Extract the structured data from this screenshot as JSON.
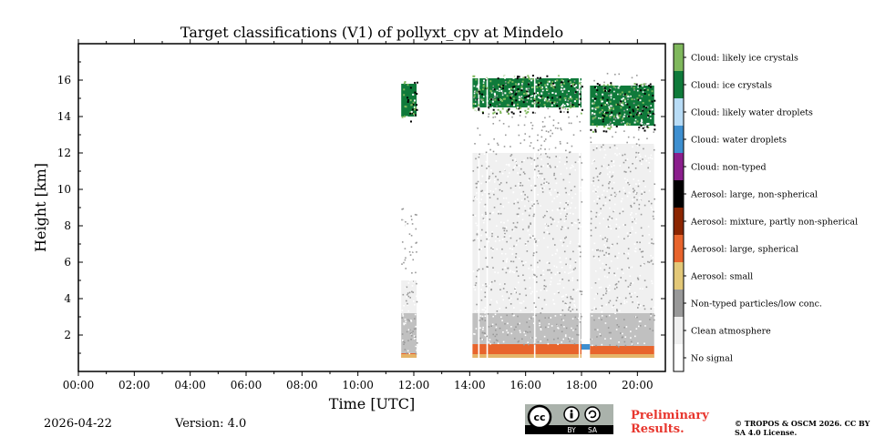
{
  "chart_data": {
    "type": "heatmap",
    "title": "Target classifications (V1) of pollyxt_cpv at Mindelo",
    "xlabel": "Time [UTC]",
    "ylabel": "Height [km]",
    "xlim": [
      0,
      21
    ],
    "ylim": [
      0,
      18
    ],
    "x_ticks": [
      {
        "value": 0,
        "label": "00:00"
      },
      {
        "value": 2,
        "label": "02:00"
      },
      {
        "value": 4,
        "label": "04:00"
      },
      {
        "value": 6,
        "label": "06:00"
      },
      {
        "value": 8,
        "label": "08:00"
      },
      {
        "value": 10,
        "label": "10:00"
      },
      {
        "value": 12,
        "label": "12:00"
      },
      {
        "value": 14,
        "label": "14:00"
      },
      {
        "value": 16,
        "label": "16:00"
      },
      {
        "value": 18,
        "label": "18:00"
      },
      {
        "value": 20,
        "label": "20:00"
      }
    ],
    "y_ticks": [
      {
        "value": 2,
        "label": "2"
      },
      {
        "value": 4,
        "label": "4"
      },
      {
        "value": 6,
        "label": "6"
      },
      {
        "value": 8,
        "label": "8"
      },
      {
        "value": 10,
        "label": "10"
      },
      {
        "value": 12,
        "label": "12"
      },
      {
        "value": 14,
        "label": "14"
      },
      {
        "value": 16,
        "label": "16"
      }
    ],
    "classes": [
      {
        "label": "No signal",
        "color": "#ffffff"
      },
      {
        "label": "Clean atmosphere",
        "color": "#f0f0f0"
      },
      {
        "label": "Non-typed particles/low conc.",
        "color": "#999999"
      },
      {
        "label": "Aerosol: small",
        "color": "#e3c878"
      },
      {
        "label": "Aerosol: large, spherical",
        "color": "#e8642c"
      },
      {
        "label": "Aerosol: mixture, partly non-spherical",
        "color": "#8b2500"
      },
      {
        "label": "Aerosol: large, non-spherical",
        "color": "#000000"
      },
      {
        "label": "Cloud: non-typed",
        "color": "#8a1e8c"
      },
      {
        "label": "Cloud: water droplets",
        "color": "#3e8fd0"
      },
      {
        "label": "Cloud: likely water droplets",
        "color": "#b8dcf6"
      },
      {
        "label": "Cloud: ice crystals",
        "color": "#0f7a3a"
      },
      {
        "label": "Cloud: likely ice crystals",
        "color": "#7fb85c"
      }
    ],
    "segments": [
      {
        "start": 11.55,
        "end": 12.1,
        "aerosol_top": 1.0,
        "noise_top": 5.0,
        "cloud_base": 14.0,
        "cloud_top": 15.8
      },
      {
        "start": 14.1,
        "end": 18.0,
        "aerosol_top": 1.5,
        "noise_top": 12.0,
        "cloud_base": 14.5,
        "cloud_top": 16.1
      },
      {
        "start": 18.3,
        "end": 20.6,
        "aerosol_top": 1.4,
        "noise_top": 12.5,
        "cloud_base": 13.5,
        "cloud_top": 15.7
      }
    ]
  },
  "footer": {
    "date": "2026-04-22",
    "version": "Version: 4.0",
    "cc_badge": {
      "cc": "cc",
      "by": "BY",
      "sa": "SA"
    },
    "preliminary": "Preliminary Results.",
    "copyright": "© TROPOS & OSCM 2026. CC BY SA 4.0 License."
  }
}
